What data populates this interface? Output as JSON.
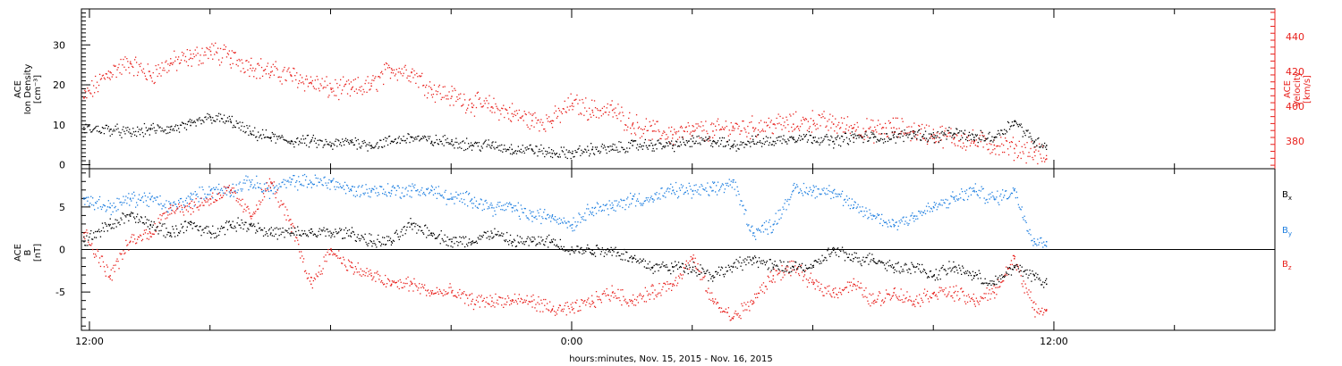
{
  "xaxis": {
    "title": "hours:minutes, Nov. 15, 2015 - Nov. 16, 2015",
    "tick_labels": [
      "12:00",
      "0:00",
      "12:00"
    ],
    "tick_hours": [
      12,
      24,
      36
    ],
    "range_hours": [
      11.8,
      41.5
    ]
  },
  "colors": {
    "black": "#000000",
    "red": "#e8201c",
    "blue": "#1f7fe0"
  },
  "chart_data": [
    {
      "type": "scatter",
      "title": "",
      "ylabel_left": [
        "ACE",
        "Ion Density",
        "[cm⁻³]"
      ],
      "ylabel_right": [
        "ACE",
        "Velocity",
        "[km/s]"
      ],
      "left_ylim": [
        -1,
        39
      ],
      "left_ticks": [
        0,
        10,
        20,
        30
      ],
      "left_tick_labels": [
        "0",
        "10",
        "20",
        "30"
      ],
      "right_ylim": [
        364,
        456
      ],
      "right_ticks": [
        380,
        400,
        420,
        440
      ],
      "right_tick_labels": [
        "380",
        "400",
        "420",
        "440"
      ],
      "series": [
        {
          "axis": "left",
          "color": "black",
          "x": [
            11.85,
            12.5,
            13.0,
            13.5,
            14.0,
            14.5,
            15.0,
            15.5,
            16.0,
            16.5,
            17.0,
            17.5,
            18.0,
            18.5,
            19.0,
            19.5,
            20.0,
            20.5,
            21.0,
            21.5,
            22.0,
            22.5,
            23.0,
            23.5,
            24.0,
            24.5,
            25.0,
            25.5,
            26.0,
            26.5,
            27.0,
            27.5,
            28.0,
            28.5,
            29.0,
            29.5,
            30.0,
            30.5,
            31.0,
            31.5,
            32.0,
            32.5,
            33.0,
            33.5,
            34.0,
            34.5,
            35.0,
            35.5,
            35.8
          ],
          "y": [
            9,
            9,
            8,
            9,
            9,
            10,
            12,
            11,
            8,
            7,
            6,
            6,
            5,
            6,
            5,
            6,
            7,
            6,
            6,
            5,
            5,
            4,
            4,
            3,
            3,
            4,
            4,
            5,
            5,
            5,
            6,
            6,
            5,
            6,
            6,
            7,
            7,
            6,
            7,
            7,
            7,
            8,
            7,
            8,
            7,
            7,
            11,
            6,
            5
          ]
        },
        {
          "axis": "right",
          "color": "red",
          "x": [
            11.85,
            12.5,
            13.0,
            13.5,
            14.0,
            14.5,
            15.0,
            15.5,
            16.0,
            16.5,
            17.0,
            17.5,
            18.0,
            18.5,
            19.0,
            19.5,
            20.0,
            20.5,
            21.0,
            21.5,
            22.0,
            22.5,
            23.0,
            23.5,
            24.0,
            24.5,
            25.0,
            25.5,
            26.0,
            26.5,
            27.0,
            27.5,
            28.0,
            28.5,
            29.0,
            29.5,
            30.0,
            30.5,
            31.0,
            31.5,
            32.0,
            32.5,
            33.0,
            33.5,
            34.0,
            34.5,
            35.0,
            35.5,
            35.8
          ],
          "y": [
            405,
            420,
            425,
            418,
            425,
            428,
            432,
            428,
            424,
            420,
            418,
            414,
            410,
            410,
            412,
            422,
            420,
            410,
            406,
            402,
            400,
            396,
            392,
            392,
            402,
            398,
            398,
            390,
            386,
            384,
            386,
            386,
            388,
            388,
            390,
            390,
            392,
            390,
            388,
            386,
            388,
            386,
            384,
            382,
            380,
            378,
            376,
            374,
            370
          ]
        }
      ]
    },
    {
      "type": "scatter",
      "title": "",
      "ylabel_left": [
        "ACE",
        "B",
        "[nT]"
      ],
      "ylim": [
        -9.5,
        9.5
      ],
      "ticks": [
        -5,
        0,
        5
      ],
      "tick_labels": [
        "-5",
        "0",
        "5"
      ],
      "zero_line": true,
      "legend": [
        "B",
        "B",
        "B"
      ],
      "legend_subscripts": [
        "x",
        "y",
        "z"
      ],
      "legend_position": "right",
      "series": [
        {
          "color": "black",
          "x": [
            11.85,
            12.5,
            13.0,
            13.5,
            14.0,
            14.5,
            15.0,
            15.5,
            16.0,
            16.5,
            17.0,
            17.5,
            18.0,
            18.5,
            19.0,
            19.5,
            20.0,
            20.5,
            21.0,
            21.5,
            22.0,
            22.5,
            23.0,
            23.5,
            24.0,
            24.5,
            25.0,
            25.5,
            26.0,
            26.5,
            27.0,
            27.5,
            28.0,
            28.5,
            29.0,
            29.5,
            30.0,
            30.5,
            31.0,
            31.5,
            32.0,
            32.5,
            33.0,
            33.5,
            34.0,
            34.5,
            35.0,
            35.5,
            35.8
          ],
          "y": [
            1,
            3,
            4,
            3,
            2,
            3,
            2,
            3,
            3,
            2,
            2,
            2,
            2,
            2,
            1,
            1,
            3,
            2,
            1,
            1,
            2,
            1,
            1,
            1,
            0,
            0,
            0,
            -1,
            -2,
            -2,
            -2,
            -3,
            -2,
            -1,
            -2,
            -2,
            -2,
            0,
            -1,
            -1,
            -2,
            -2,
            -3,
            -2,
            -3,
            -4,
            -2,
            -3,
            -4
          ]
        },
        {
          "color": "blue",
          "x": [
            11.85,
            12.5,
            13.0,
            13.5,
            14.0,
            14.5,
            15.0,
            15.5,
            16.0,
            16.5,
            17.0,
            17.5,
            18.0,
            18.5,
            19.0,
            19.5,
            20.0,
            20.5,
            21.0,
            21.5,
            22.0,
            22.5,
            23.0,
            23.5,
            24.0,
            24.5,
            25.0,
            25.5,
            26.0,
            26.5,
            27.0,
            27.5,
            28.0,
            28.5,
            29.0,
            29.5,
            30.0,
            30.5,
            31.0,
            31.5,
            32.0,
            32.5,
            33.0,
            33.5,
            34.0,
            34.5,
            35.0,
            35.5,
            35.8
          ],
          "y": [
            6,
            5,
            6,
            6,
            5,
            6,
            7,
            7,
            8,
            7,
            8,
            8,
            8,
            7,
            7,
            7,
            7,
            7,
            6,
            6,
            5,
            5,
            4,
            4,
            3,
            5,
            5,
            6,
            6,
            7,
            7,
            7,
            8,
            2,
            3,
            7,
            7,
            7,
            5,
            4,
            3,
            4,
            5,
            6,
            7,
            6,
            7,
            1,
            1
          ]
        },
        {
          "color": "red",
          "x": [
            11.85,
            12.5,
            13.0,
            13.5,
            14.0,
            14.5,
            15.0,
            15.5,
            16.0,
            16.5,
            17.0,
            17.5,
            18.0,
            18.5,
            19.0,
            19.5,
            20.0,
            20.5,
            21.0,
            21.5,
            22.0,
            22.5,
            23.0,
            23.5,
            24.0,
            24.5,
            25.0,
            25.5,
            26.0,
            26.5,
            27.0,
            27.5,
            28.0,
            28.5,
            29.0,
            29.5,
            30.0,
            30.5,
            31.0,
            31.5,
            32.0,
            32.5,
            33.0,
            33.5,
            34.0,
            34.5,
            35.0,
            35.5,
            35.8
          ],
          "y": [
            2,
            -3,
            1,
            2,
            5,
            5,
            6,
            7,
            4,
            8,
            3,
            -4,
            0,
            -2,
            -3,
            -4,
            -4,
            -5,
            -5,
            -6,
            -6,
            -6,
            -6,
            -7,
            -7,
            -6,
            -5,
            -6,
            -5,
            -4,
            -1,
            -6,
            -8,
            -6,
            -3,
            -2,
            -4,
            -5,
            -4,
            -6,
            -5,
            -6,
            -5,
            -5,
            -6,
            -5,
            -1,
            -7,
            -7
          ]
        }
      ]
    }
  ]
}
